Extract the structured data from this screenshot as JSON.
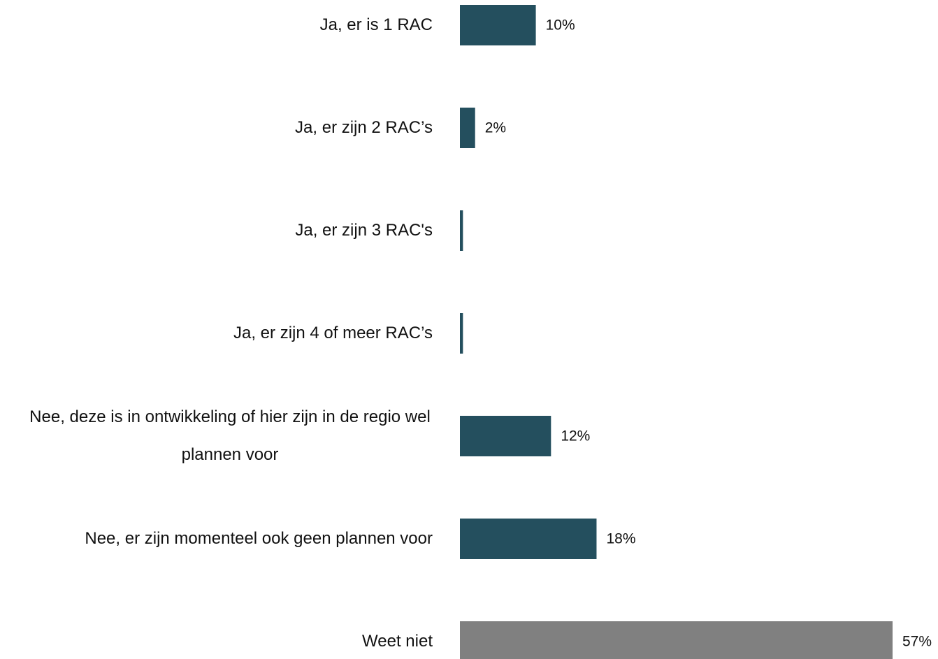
{
  "chart_data": {
    "type": "hbar",
    "categories": [
      "Ja, er is 1 RAC",
      "Ja, er zijn 2 RAC’s",
      "Ja, er zijn 3 RAC's",
      "Ja, er zijn 4 of meer RAC’s",
      "Nee, deze is in ontwikkeling of hier zijn in de regio wel plannen voor",
      "Nee, er zijn momenteel ook geen plannen voor",
      "Weet niet"
    ],
    "values": [
      10,
      2,
      0.4,
      0.4,
      12,
      18,
      57
    ],
    "value_labels": [
      "10%",
      "2%",
      null,
      null,
      "12%",
      "18%",
      "57%"
    ],
    "colors": [
      "#244f5e",
      "#244f5e",
      "#244f5e",
      "#244f5e",
      "#244f5e",
      "#244f5e",
      "#808080"
    ]
  }
}
